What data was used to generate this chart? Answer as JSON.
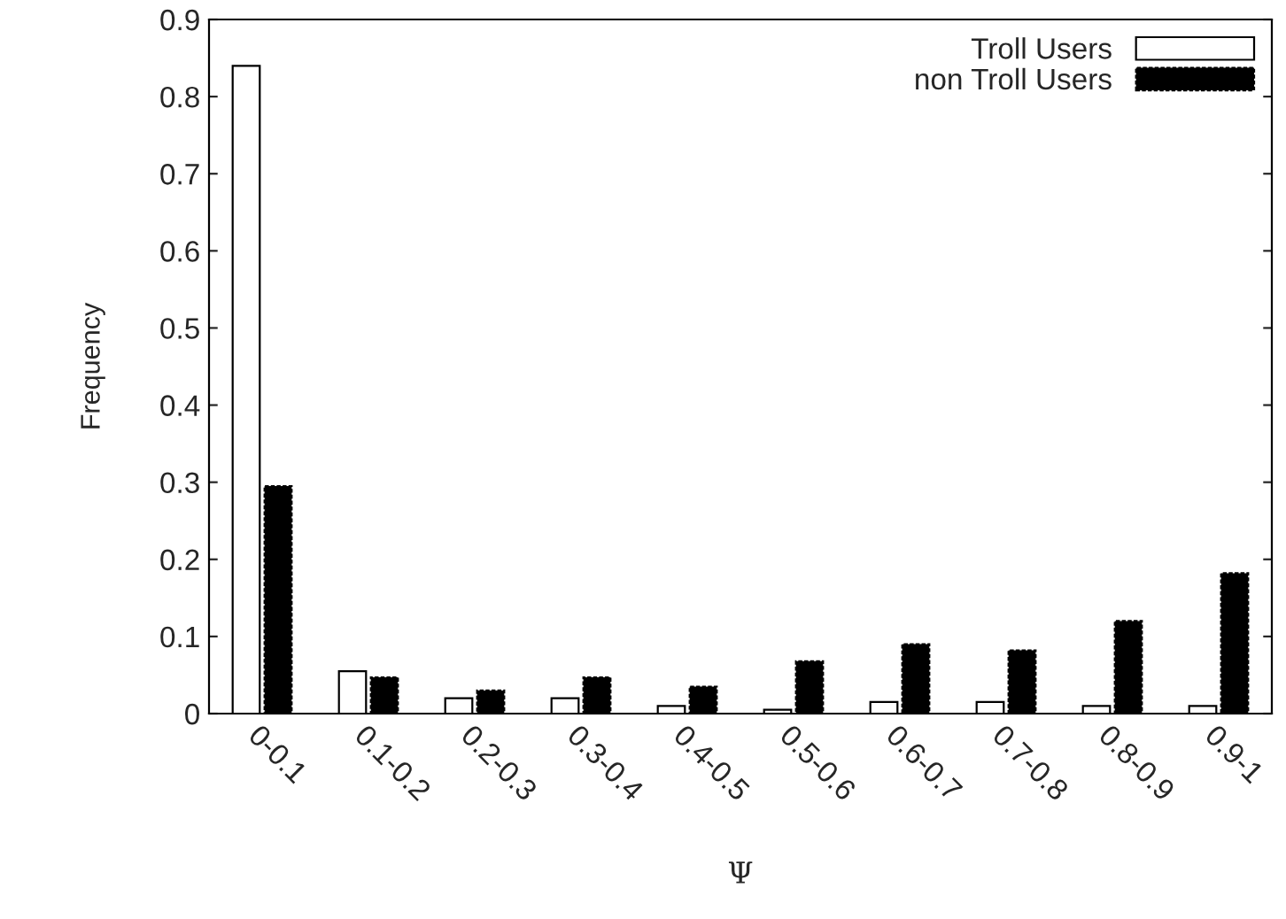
{
  "chart_data": {
    "type": "bar",
    "xlabel": "Ψ",
    "ylabel": "Frequency",
    "categories": [
      "0-0.1",
      "0.1-0.2",
      "0.2-0.3",
      "0.3-0.4",
      "0.4-0.5",
      "0.5-0.6",
      "0.6-0.7",
      "0.7-0.8",
      "0.8-0.9",
      "0.9-1"
    ],
    "series": [
      {
        "name": "Troll Users",
        "color": "#ffffff",
        "values": [
          0.84,
          0.055,
          0.02,
          0.02,
          0.01,
          0.005,
          0.015,
          0.015,
          0.01,
          0.01
        ]
      },
      {
        "name": "non Troll Users",
        "color": "#000000",
        "values": [
          0.295,
          0.047,
          0.03,
          0.047,
          0.035,
          0.068,
          0.09,
          0.082,
          0.12,
          0.182
        ]
      }
    ],
    "ylim": [
      0,
      0.9
    ],
    "yticks": [
      0,
      0.1,
      0.2,
      0.3,
      0.4,
      0.5,
      0.6,
      0.7,
      0.8,
      0.9
    ],
    "grid": false,
    "legend": "top right"
  }
}
